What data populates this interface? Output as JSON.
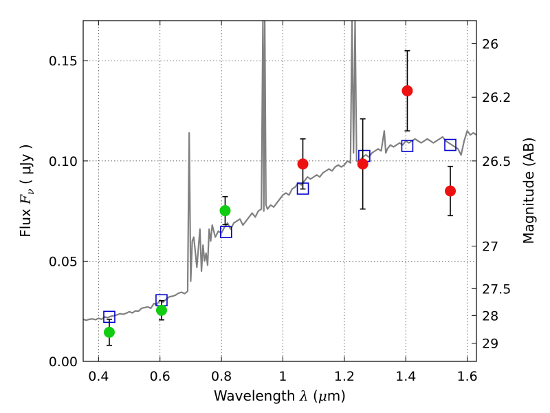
{
  "chart_data": {
    "type": "scatter",
    "xlabel": {
      "prefix": "Wavelength  ",
      "symbol": "λ",
      "unit_open": " (",
      "unit_mu": "μ",
      "unit_rest": "m)"
    },
    "ylabel": {
      "prefix": "Flux  ",
      "symbol": "F",
      "sub": "ν",
      "unit": "  ( μJy )"
    },
    "y2label": "Magnitude (AB)",
    "xlim": [
      0.35,
      1.63
    ],
    "ylim": [
      0.0,
      0.17
    ],
    "grid": true,
    "x_ticks": [
      {
        "value": 0.4,
        "label": "0.4"
      },
      {
        "value": 0.6,
        "label": "0.6"
      },
      {
        "value": 0.8,
        "label": "0.8"
      },
      {
        "value": 1.0,
        "label": "1"
      },
      {
        "value": 1.2,
        "label": "1.2"
      },
      {
        "value": 1.4,
        "label": "1.4"
      },
      {
        "value": 1.6,
        "label": "1.6"
      }
    ],
    "y_ticks": [
      {
        "value": 0.0,
        "label": "0.00"
      },
      {
        "value": 0.05,
        "label": "0.05"
      },
      {
        "value": 0.1,
        "label": "0.10"
      },
      {
        "value": 0.15,
        "label": "0.15"
      }
    ],
    "y2_ticks": [
      {
        "flux": 0.1585,
        "label": "26"
      },
      {
        "flux": 0.1318,
        "label": "26.2"
      },
      {
        "flux": 0.1,
        "label": "26.5"
      },
      {
        "flux": 0.0575,
        "label": "27"
      },
      {
        "flux": 0.0363,
        "label": "27.5"
      },
      {
        "flux": 0.0229,
        "label": "28"
      },
      {
        "flux": 0.0091,
        "label": "29"
      }
    ],
    "series": [
      {
        "kind": "line",
        "color": "#808080",
        "x": [
          0.35,
          0.36,
          0.37,
          0.38,
          0.39,
          0.4,
          0.41,
          0.42,
          0.43,
          0.44,
          0.45,
          0.46,
          0.47,
          0.48,
          0.49,
          0.5,
          0.51,
          0.52,
          0.53,
          0.54,
          0.55,
          0.56,
          0.57,
          0.58,
          0.59,
          0.6,
          0.61,
          0.62,
          0.63,
          0.64,
          0.65,
          0.66,
          0.67,
          0.68,
          0.69,
          0.695,
          0.7,
          0.705,
          0.71,
          0.72,
          0.73,
          0.735,
          0.74,
          0.745,
          0.75,
          0.755,
          0.76,
          0.765,
          0.77,
          0.78,
          0.79,
          0.8,
          0.81,
          0.82,
          0.83,
          0.84,
          0.85,
          0.86,
          0.87,
          0.88,
          0.89,
          0.9,
          0.91,
          0.92,
          0.93,
          0.935,
          0.938,
          0.941,
          0.945,
          0.95,
          0.96,
          0.97,
          0.98,
          0.99,
          1.0,
          1.01,
          1.02,
          1.03,
          1.04,
          1.05,
          1.06,
          1.07,
          1.08,
          1.09,
          1.1,
          1.11,
          1.12,
          1.13,
          1.14,
          1.15,
          1.16,
          1.17,
          1.18,
          1.19,
          1.2,
          1.21,
          1.22,
          1.225,
          1.23,
          1.235,
          1.24,
          1.25,
          1.26,
          1.27,
          1.28,
          1.29,
          1.3,
          1.31,
          1.32,
          1.33,
          1.335,
          1.34,
          1.35,
          1.36,
          1.37,
          1.38,
          1.39,
          1.4,
          1.41,
          1.42,
          1.43,
          1.44,
          1.45,
          1.46,
          1.47,
          1.48,
          1.49,
          1.5,
          1.51,
          1.52,
          1.53,
          1.54,
          1.55,
          1.56,
          1.57,
          1.58,
          1.59,
          1.6,
          1.61,
          1.62,
          1.63
        ],
        "y": [
          0.021,
          0.0205,
          0.021,
          0.0212,
          0.0208,
          0.0215,
          0.021,
          0.0222,
          0.0218,
          0.0225,
          0.0228,
          0.0232,
          0.0238,
          0.0235,
          0.024,
          0.0248,
          0.0242,
          0.0252,
          0.025,
          0.0265,
          0.0268,
          0.0272,
          0.0265,
          0.0288,
          0.0285,
          0.0305,
          0.0295,
          0.031,
          0.0322,
          0.0325,
          0.033,
          0.034,
          0.0345,
          0.0338,
          0.035,
          0.114,
          0.04,
          0.06,
          0.062,
          0.047,
          0.066,
          0.045,
          0.058,
          0.05,
          0.054,
          0.048,
          0.066,
          0.06,
          0.068,
          0.062,
          0.065,
          0.064,
          0.067,
          0.069,
          0.066,
          0.069,
          0.07,
          0.071,
          0.068,
          0.07,
          0.072,
          0.074,
          0.072,
          0.075,
          0.076,
          0.17,
          0.075,
          0.17,
          0.078,
          0.076,
          0.078,
          0.077,
          0.079,
          0.081,
          0.083,
          0.084,
          0.083,
          0.086,
          0.087,
          0.089,
          0.088,
          0.09,
          0.092,
          0.091,
          0.092,
          0.093,
          0.092,
          0.094,
          0.095,
          0.096,
          0.095,
          0.097,
          0.098,
          0.097,
          0.098,
          0.1,
          0.099,
          0.17,
          0.104,
          0.17,
          0.1,
          0.1,
          0.102,
          0.103,
          0.102,
          0.104,
          0.105,
          0.106,
          0.105,
          0.115,
          0.104,
          0.106,
          0.108,
          0.107,
          0.108,
          0.109,
          0.108,
          0.11,
          0.109,
          0.11,
          0.111,
          0.11,
          0.109,
          0.11,
          0.111,
          0.11,
          0.109,
          0.11,
          0.111,
          0.112,
          0.11,
          0.109,
          0.108,
          0.107,
          0.106,
          0.103,
          0.11,
          0.115,
          0.113,
          0.114,
          0.113
        ]
      },
      {
        "kind": "markers",
        "marker": "square",
        "color": "#0000cc",
        "x": [
          0.435,
          0.605,
          0.815,
          1.065,
          1.265,
          1.405,
          1.545
        ],
        "y": [
          0.0222,
          0.0305,
          0.0645,
          0.0862,
          0.1025,
          0.1075,
          0.108
        ]
      },
      {
        "kind": "markers",
        "marker": "circle",
        "color": "#11cc11",
        "x": [
          0.435,
          0.605,
          0.812
        ],
        "y": [
          0.0145,
          0.0255,
          0.0752
        ],
        "yerr": [
          0.0065,
          0.0048,
          0.007
        ]
      },
      {
        "kind": "markers",
        "marker": "circle",
        "color": "#ee1111",
        "x": [
          1.065,
          1.26,
          1.405,
          1.545
        ],
        "y": [
          0.0985,
          0.0985,
          0.135,
          0.085
        ],
        "yerr": [
          0.0125,
          0.0225,
          0.02,
          0.0123
        ]
      }
    ]
  }
}
